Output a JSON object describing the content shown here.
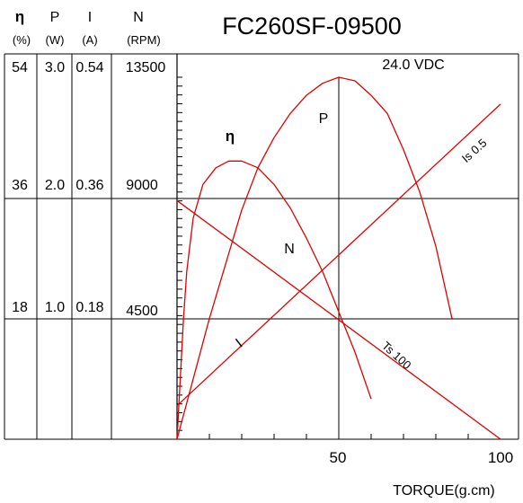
{
  "chart_data": {
    "type": "line",
    "title": "FC260SF-09500",
    "voltage_label": "24.0 VDC",
    "xlabel": "TORQUE(g.cm)",
    "xlim": [
      0,
      100
    ],
    "x_ticks": [
      "50",
      "100"
    ],
    "axis_headers": [
      {
        "symbol": "η",
        "unit": "(%)"
      },
      {
        "symbol": "P",
        "unit": "(W)"
      },
      {
        "symbol": "I",
        "unit": "(A)"
      },
      {
        "symbol": "N",
        "unit": "(RPM)"
      }
    ],
    "y_scale_rows": [
      [
        "54",
        "3.0",
        "0.54",
        "13500"
      ],
      [
        "36",
        "2.0",
        "0.36",
        "9000"
      ],
      [
        "18",
        "1.0",
        "0.18",
        "4500"
      ]
    ],
    "axes": {
      "efficiency_pct": [
        0,
        54
      ],
      "power_W": [
        0,
        3.0
      ],
      "current_A": [
        0,
        0.54
      ],
      "speed_rpm": [
        0,
        13500
      ]
    },
    "series": [
      {
        "name": "η",
        "axis": "efficiency_pct",
        "x": [
          0,
          1,
          2,
          3,
          5,
          8,
          12,
          16,
          20,
          25,
          30,
          35,
          40,
          45,
          50,
          55,
          60
        ],
        "y": [
          0,
          9,
          18,
          25,
          33,
          38,
          40.5,
          41.5,
          41.5,
          40.5,
          38,
          34.5,
          30,
          25,
          19,
          13,
          6
        ]
      },
      {
        "name": "P",
        "axis": "power_W",
        "x": [
          0,
          5,
          10,
          15,
          20,
          25,
          30,
          35,
          40,
          45,
          50,
          55,
          60,
          65,
          70,
          75,
          80,
          85
        ],
        "y": [
          0,
          0.5,
          1.0,
          1.45,
          1.9,
          2.25,
          2.5,
          2.7,
          2.85,
          2.95,
          3.0,
          2.97,
          2.85,
          2.7,
          2.4,
          2.05,
          1.6,
          1.0
        ]
      },
      {
        "name": "N",
        "label_at": "Ts 100",
        "axis": "speed_rpm",
        "x": [
          0,
          100
        ],
        "y": [
          8900,
          0
        ]
      },
      {
        "name": "I",
        "label_at": "Is 0.5",
        "axis": "current_A",
        "x": [
          0,
          100
        ],
        "y": [
          0.05,
          0.5
        ]
      }
    ]
  }
}
